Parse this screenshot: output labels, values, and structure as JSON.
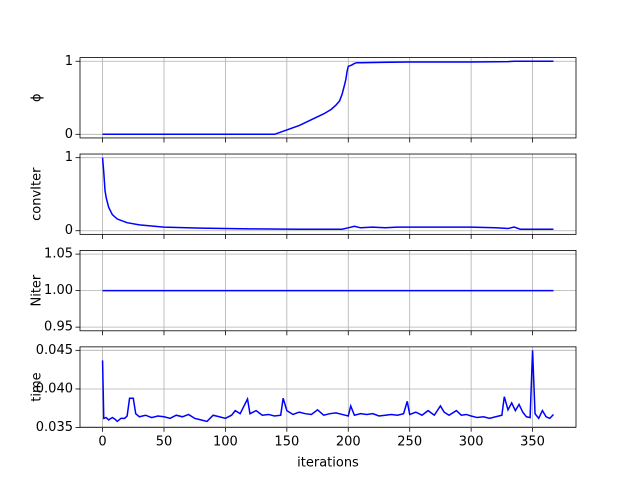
{
  "chart_data": [
    {
      "type": "line",
      "ylabel": "ϕ",
      "xlim": [
        -18.35,
        385.35
      ],
      "xticks": [
        0,
        50,
        100,
        150,
        200,
        250,
        300,
        350
      ],
      "ylim": [
        -0.05,
        1.05
      ],
      "yticks": [
        0,
        1
      ],
      "grid": true,
      "x": [
        0,
        140,
        150,
        160,
        170,
        180,
        186,
        190,
        193,
        195,
        197,
        198,
        199,
        200,
        203,
        205,
        207,
        210,
        250,
        300,
        330,
        335,
        367
      ],
      "values": [
        0,
        0,
        0.06,
        0.12,
        0.2,
        0.28,
        0.34,
        0.4,
        0.46,
        0.55,
        0.68,
        0.75,
        0.86,
        0.93,
        0.95,
        0.97,
        0.98,
        0.98,
        0.99,
        0.99,
        0.995,
        1.0,
        1.0
      ],
      "color": "#0000ff"
    },
    {
      "type": "line",
      "ylabel": "convIter",
      "xlim": [
        -18.35,
        385.35
      ],
      "xticks": [
        0,
        50,
        100,
        150,
        200,
        250,
        300,
        350
      ],
      "ylim": [
        -0.05,
        1.05
      ],
      "yticks": [
        0,
        1
      ],
      "grid": true,
      "x": [
        0,
        1,
        2,
        3,
        5,
        8,
        12,
        20,
        30,
        50,
        80,
        120,
        160,
        195,
        200,
        205,
        210,
        220,
        230,
        240,
        260,
        300,
        320,
        330,
        335,
        340,
        367
      ],
      "values": [
        1.0,
        0.8,
        0.55,
        0.45,
        0.32,
        0.22,
        0.16,
        0.11,
        0.08,
        0.05,
        0.035,
        0.025,
        0.02,
        0.02,
        0.04,
        0.06,
        0.04,
        0.05,
        0.04,
        0.05,
        0.05,
        0.05,
        0.04,
        0.03,
        0.05,
        0.02,
        0.02
      ],
      "color": "#0000ff"
    },
    {
      "type": "line",
      "ylabel": "Niter",
      "xlim": [
        -18.35,
        385.35
      ],
      "xticks": [
        0,
        50,
        100,
        150,
        200,
        250,
        300,
        350
      ],
      "ylim": [
        0.945,
        1.055
      ],
      "yticks": [
        0.95,
        {
          "value": 1,
          "label": "1.00"
        },
        1.05
      ],
      "grid": true,
      "x": [
        0,
        367
      ],
      "values": [
        1,
        1
      ],
      "color": "#0000ff"
    },
    {
      "type": "line",
      "ylabel": "time",
      "xlabel": "iterations",
      "xlim": [
        -18.35,
        385.35
      ],
      "xticks": [
        0,
        50,
        100,
        150,
        200,
        250,
        300,
        350
      ],
      "ylim": [
        0.03505,
        0.04545
      ],
      "yticks": [
        0.035,
        {
          "value": 0.04,
          "label": "0.040"
        },
        0.045
      ],
      "grid": true,
      "x": [
        0,
        1,
        3,
        5,
        8,
        10,
        12,
        15,
        18,
        20,
        22,
        25,
        27,
        30,
        35,
        40,
        45,
        50,
        55,
        60,
        65,
        70,
        75,
        80,
        85,
        90,
        95,
        100,
        105,
        108,
        112,
        118,
        120,
        125,
        130,
        135,
        140,
        145,
        147,
        150,
        155,
        160,
        165,
        170,
        175,
        180,
        185,
        190,
        195,
        200,
        202,
        205,
        210,
        215,
        220,
        225,
        230,
        235,
        240,
        245,
        248,
        250,
        255,
        260,
        265,
        270,
        275,
        278,
        282,
        288,
        292,
        296,
        300,
        305,
        310,
        315,
        320,
        325,
        327,
        330,
        333,
        336,
        339,
        342,
        345,
        348,
        350,
        352,
        355,
        358,
        361,
        364,
        367
      ],
      "values": [
        0.0437,
        0.0362,
        0.0363,
        0.036,
        0.0363,
        0.0361,
        0.0358,
        0.0362,
        0.0362,
        0.0365,
        0.0388,
        0.0388,
        0.0368,
        0.0364,
        0.0366,
        0.0363,
        0.0365,
        0.0364,
        0.0362,
        0.0366,
        0.0364,
        0.0367,
        0.0362,
        0.036,
        0.0358,
        0.0366,
        0.0364,
        0.0362,
        0.0366,
        0.0372,
        0.0368,
        0.0387,
        0.0368,
        0.0372,
        0.0366,
        0.0367,
        0.0365,
        0.0366,
        0.0388,
        0.0372,
        0.0367,
        0.037,
        0.0368,
        0.0367,
        0.0373,
        0.0366,
        0.0368,
        0.0369,
        0.0367,
        0.0365,
        0.0378,
        0.0366,
        0.0368,
        0.0367,
        0.0368,
        0.0365,
        0.0366,
        0.0367,
        0.0366,
        0.0368,
        0.0384,
        0.0367,
        0.037,
        0.0366,
        0.0372,
        0.0366,
        0.0378,
        0.037,
        0.0366,
        0.0372,
        0.0366,
        0.0367,
        0.0365,
        0.0363,
        0.0364,
        0.0362,
        0.0364,
        0.0366,
        0.039,
        0.0373,
        0.0382,
        0.0372,
        0.038,
        0.037,
        0.0364,
        0.0363,
        0.045,
        0.0368,
        0.0362,
        0.0372,
        0.0364,
        0.0362,
        0.0367
      ],
      "color": "#0000ff"
    }
  ]
}
